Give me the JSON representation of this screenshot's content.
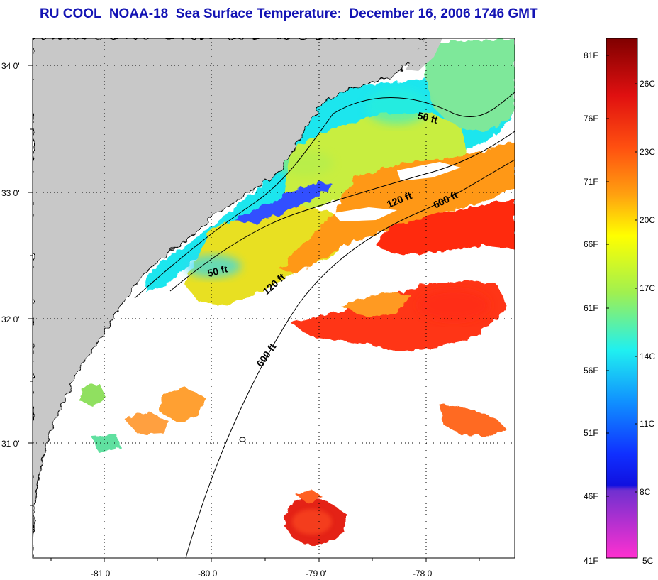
{
  "title": "RU COOL  NOAA-18  Sea Surface Temperature:  December 16, 2006 1746 GMT",
  "map": {
    "lat_ticks": [
      "34 0'",
      "33 0'",
      "32 0'",
      "31 0'"
    ],
    "lon_ticks": [
      "-81 0'",
      "-80 0'",
      "-79 0'",
      "-78 0'"
    ],
    "depth_contours": [
      "50 ft",
      "50 ft",
      "120 ft",
      "120 ft",
      "600 ft",
      "600 ft"
    ]
  },
  "colorbar": {
    "fahrenheit": [
      "81F",
      "76F",
      "71F",
      "66F",
      "61F",
      "56F",
      "51F",
      "46F",
      "41F"
    ],
    "celsius": [
      "26C",
      "23C",
      "20C",
      "17C",
      "14C",
      "11C",
      "8C",
      "5C"
    ]
  },
  "colors": {
    "title": "#1414b4",
    "land": "#c8c8c8",
    "cloud": "#ffffff"
  }
}
